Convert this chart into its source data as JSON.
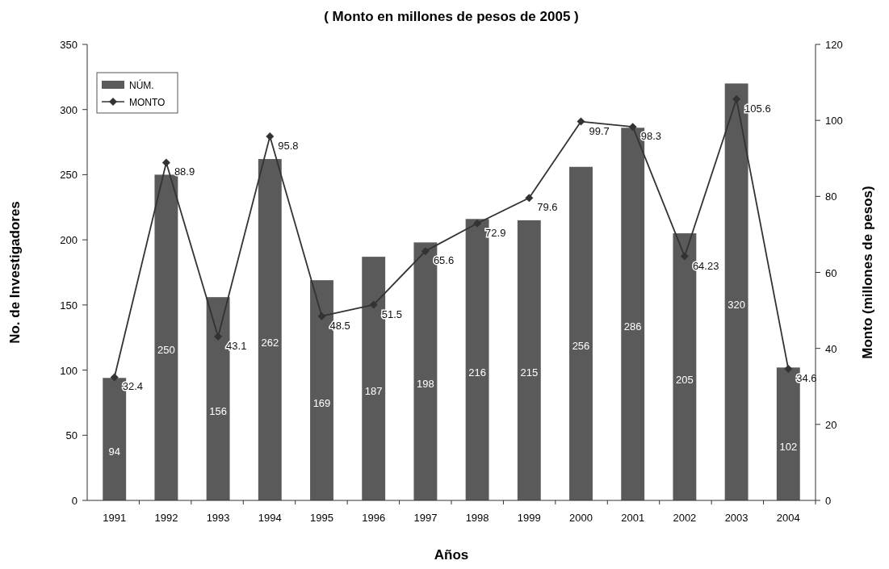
{
  "chart_data": {
    "type": "bar",
    "title": "( Monto en millones de pesos de 2005 )",
    "xlabel": "Años",
    "ylabel": "No. de Investigadores",
    "y2label": "Monto (millones de pesos)",
    "categories": [
      "1991",
      "1992",
      "1993",
      "1994",
      "1995",
      "1996",
      "1997",
      "1998",
      "1999",
      "2000",
      "2001",
      "2002",
      "2003",
      "2004"
    ],
    "series": [
      {
        "name": "NÚM.",
        "color": "#5a5a5a",
        "values": [
          94,
          250,
          156,
          262,
          169,
          187,
          198,
          216,
          215,
          256,
          286,
          205,
          320,
          102
        ]
      },
      {
        "name": "MONTO",
        "type": "line",
        "axis": "y2",
        "color": "#333333",
        "marker": "diamond",
        "values": [
          32.4,
          88.9,
          43.1,
          95.8,
          48.5,
          51.5,
          65.6,
          72.9,
          79.6,
          99.7,
          98.3,
          64.23,
          105.6,
          34.6
        ]
      }
    ],
    "data_labels": true,
    "ylim": [
      0,
      350
    ],
    "yticks": [
      0,
      50,
      100,
      150,
      200,
      250,
      300,
      350
    ],
    "y2lim": [
      0,
      120
    ],
    "y2ticks": [
      0,
      20,
      40,
      60,
      80,
      100,
      120
    ],
    "legend": "top left",
    "grid": false
  }
}
